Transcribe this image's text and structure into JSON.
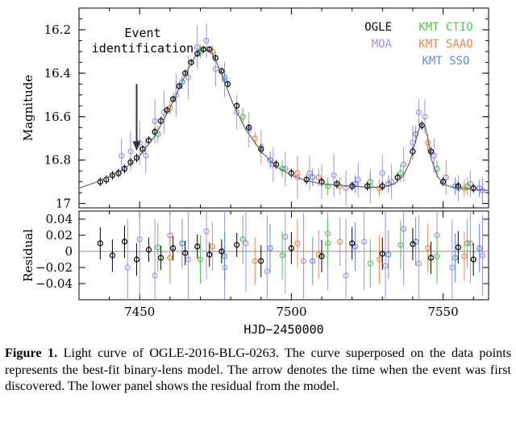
{
  "chart_data": [
    {
      "type": "scatter",
      "panel": "light curve",
      "ylabel": "Magnitude",
      "xlim": [
        7430,
        7565
      ],
      "ylim": [
        17.02,
        16.1
      ],
      "y_inverted": true,
      "yticks": [
        "16.2",
        "16.4",
        "16.6",
        "16.8",
        "17"
      ],
      "annotation": {
        "text_line1": "Event",
        "text_line2": "identification",
        "x": 7449,
        "y_from": 16.45,
        "y_to": 16.75
      },
      "legend": {
        "position": "top-right",
        "entries": [
          {
            "label": "OGLE",
            "color": "#000000"
          },
          {
            "label": "MOA",
            "color": "#a88ee8"
          },
          {
            "label": "KMT CTIO",
            "color": "#55c455"
          },
          {
            "label": "KMT SAAO",
            "color": "#ee8a4a"
          },
          {
            "label": "KMT SSO",
            "color": "#5a8de8"
          }
        ]
      },
      "model_curve": {
        "color": "#666666",
        "x": [
          7430,
          7435,
          7440,
          7445,
          7450,
          7455,
          7460,
          7463,
          7466,
          7468,
          7470,
          7472,
          7474,
          7476,
          7478,
          7481,
          7485,
          7490,
          7495,
          7500,
          7505,
          7510,
          7515,
          7520,
          7525,
          7530,
          7534,
          7537,
          7539,
          7541,
          7542,
          7543,
          7544,
          7545,
          7546,
          7548,
          7550,
          7553,
          7556,
          7560,
          7565
        ],
        "y": [
          16.93,
          16.905,
          16.875,
          16.84,
          16.78,
          16.69,
          16.56,
          16.47,
          16.38,
          16.33,
          16.29,
          16.285,
          16.31,
          16.37,
          16.44,
          16.55,
          16.66,
          16.76,
          16.83,
          16.87,
          16.895,
          16.91,
          16.915,
          16.92,
          16.925,
          16.925,
          16.91,
          16.87,
          16.81,
          16.71,
          16.66,
          16.63,
          16.64,
          16.7,
          16.79,
          16.87,
          16.91,
          16.925,
          16.93,
          16.935,
          16.94
        ]
      },
      "series": [
        {
          "name": "OGLE",
          "color": "#000000",
          "x": [
            7437,
            7439,
            7441,
            7443,
            7445,
            7447,
            7449,
            7451,
            7453,
            7455,
            7457,
            7459,
            7461,
            7463,
            7465,
            7467,
            7469,
            7471,
            7473,
            7475,
            7477,
            7479,
            7482,
            7486,
            7490,
            7495,
            7500,
            7505,
            7510,
            7515,
            7520,
            7525,
            7530,
            7535,
            7540,
            7543,
            7546,
            7550,
            7555,
            7560
          ],
          "y": [
            16.9,
            16.89,
            16.87,
            16.86,
            16.84,
            16.81,
            16.79,
            16.75,
            16.71,
            16.67,
            16.62,
            16.57,
            16.52,
            16.46,
            16.4,
            16.35,
            16.31,
            16.29,
            16.29,
            16.33,
            16.39,
            16.45,
            16.55,
            16.65,
            16.75,
            16.82,
            16.86,
            16.89,
            16.9,
            16.91,
            16.92,
            16.92,
            16.92,
            16.88,
            16.76,
            16.64,
            16.76,
            16.9,
            16.92,
            16.93
          ],
          "err": [
            0.02,
            0.02,
            0.02,
            0.02,
            0.02,
            0.02,
            0.02,
            0.02,
            0.02,
            0.02,
            0.02,
            0.015,
            0.015,
            0.015,
            0.015,
            0.015,
            0.015,
            0.015,
            0.015,
            0.015,
            0.015,
            0.015,
            0.015,
            0.015,
            0.02,
            0.02,
            0.02,
            0.02,
            0.02,
            0.02,
            0.02,
            0.02,
            0.02,
            0.02,
            0.02,
            0.02,
            0.02,
            0.02,
            0.02,
            0.02
          ]
        },
        {
          "name": "MOA",
          "color": "#a88ee8",
          "x": [
            7444,
            7447,
            7450,
            7452,
            7455,
            7458,
            7462,
            7466,
            7469,
            7472,
            7475,
            7478,
            7482,
            7486,
            7490,
            7494,
            7498,
            7502,
            7506,
            7510,
            7514,
            7518,
            7522,
            7526,
            7530,
            7533,
            7537,
            7540,
            7542,
            7544,
            7547,
            7551,
            7555,
            7559,
            7563
          ],
          "y": [
            16.78,
            16.76,
            16.72,
            16.78,
            16.62,
            16.58,
            16.5,
            16.42,
            16.28,
            16.25,
            16.38,
            16.43,
            16.58,
            16.66,
            16.74,
            16.82,
            16.84,
            16.88,
            16.86,
            16.9,
            16.87,
            16.93,
            16.89,
            16.92,
            16.86,
            16.9,
            16.82,
            16.72,
            16.58,
            16.6,
            16.78,
            16.88,
            16.93,
            16.91,
            16.94
          ],
          "err": [
            0.08,
            0.09,
            0.1,
            0.08,
            0.1,
            0.1,
            0.1,
            0.1,
            0.1,
            0.08,
            0.08,
            0.08,
            0.08,
            0.08,
            0.08,
            0.08,
            0.08,
            0.1,
            0.08,
            0.08,
            0.1,
            0.08,
            0.08,
            0.08,
            0.08,
            0.08,
            0.08,
            0.08,
            0.06,
            0.08,
            0.08,
            0.08,
            0.06,
            0.06,
            0.06
          ]
        },
        {
          "name": "KMT CTIO",
          "color": "#55c455",
          "x": [
            7456,
            7470,
            7484,
            7497,
            7512,
            7526,
            7536,
            7548,
            7558
          ],
          "y": [
            16.68,
            16.3,
            16.6,
            16.84,
            16.92,
            16.9,
            16.86,
            16.84,
            16.92
          ],
          "err": [
            0.04,
            0.03,
            0.04,
            0.04,
            0.04,
            0.04,
            0.04,
            0.04,
            0.04
          ]
        },
        {
          "name": "KMT SAAO",
          "color": "#ee8a4a",
          "x": [
            7460,
            7474,
            7488,
            7502,
            7509,
            7516,
            7529,
            7545,
            7557
          ],
          "y": [
            16.56,
            16.3,
            16.7,
            16.86,
            16.88,
            16.92,
            16.93,
            16.72,
            16.93
          ],
          "err": [
            0.03,
            0.03,
            0.03,
            0.04,
            0.04,
            0.04,
            0.04,
            0.04,
            0.04
          ]
        },
        {
          "name": "KMT SSO",
          "color": "#5a8de8",
          "x": [
            7464,
            7478,
            7493,
            7507,
            7521,
            7532,
            7541,
            7554,
            7562
          ],
          "y": [
            16.44,
            16.42,
            16.8,
            16.88,
            16.91,
            16.91,
            16.68,
            16.92,
            16.93
          ],
          "err": [
            0.03,
            0.03,
            0.04,
            0.04,
            0.04,
            0.04,
            0.04,
            0.04,
            0.04
          ]
        }
      ]
    },
    {
      "type": "scatter",
      "panel": "residual",
      "ylabel": "Residual",
      "xlabel": "HJD−2450000",
      "xlim": [
        7430,
        7565
      ],
      "ylim": [
        -0.06,
        0.05
      ],
      "xticks": [
        "7450",
        "7500",
        "7550"
      ],
      "yticks": [
        "0.04",
        "0.02",
        "0",
        "−0.02",
        "−0.04"
      ],
      "series": [
        {
          "name": "OGLE",
          "color": "#000000",
          "x": [
            7437,
            7441,
            7445,
            7449,
            7453,
            7457,
            7461,
            7465,
            7469,
            7473,
            7477,
            7482,
            7490,
            7500,
            7510,
            7520,
            7530,
            7540,
            7546,
            7555,
            7560
          ],
          "y": [
            0.01,
            -0.005,
            0.012,
            -0.01,
            0.002,
            -0.008,
            0.004,
            -0.002,
            0.006,
            -0.004,
            0.0,
            0.008,
            -0.012,
            0.004,
            -0.006,
            0.01,
            -0.003,
            0.009,
            -0.008,
            0.005,
            -0.01
          ],
          "err": [
            0.02,
            0.02,
            0.02,
            0.02,
            0.015,
            0.015,
            0.015,
            0.015,
            0.015,
            0.015,
            0.015,
            0.015,
            0.02,
            0.02,
            0.02,
            0.02,
            0.02,
            0.02,
            0.02,
            0.02,
            0.02
          ]
        },
        {
          "name": "MOA",
          "color": "#a88ee8",
          "x": [
            7446,
            7450,
            7455,
            7460,
            7466,
            7472,
            7478,
            7485,
            7492,
            7498,
            7504,
            7512,
            7518,
            7524,
            7531,
            7537,
            7542,
            7548,
            7553,
            7559,
            7563
          ],
          "y": [
            -0.02,
            0.015,
            -0.03,
            0.02,
            -0.01,
            0.025,
            -0.02,
            0.01,
            -0.025,
            0.018,
            -0.012,
            0.022,
            -0.03,
            0.012,
            -0.018,
            0.028,
            -0.015,
            0.02,
            -0.02,
            0.01,
            -0.005
          ],
          "err": [
            0.06,
            0.07,
            0.07,
            0.06,
            0.07,
            0.06,
            0.07,
            0.06,
            0.07,
            0.07,
            0.06,
            0.07,
            0.07,
            0.06,
            0.07,
            0.07,
            0.06,
            0.06,
            0.06,
            0.05,
            0.05
          ]
        },
        {
          "name": "KMT CTIO",
          "color": "#55c455",
          "x": [
            7456,
            7470,
            7484,
            7497,
            7512,
            7526,
            7536,
            7548,
            7558
          ],
          "y": [
            0.005,
            -0.01,
            0.015,
            -0.005,
            0.01,
            -0.015,
            0.008,
            -0.006,
            0.01
          ],
          "err": [
            0.03,
            0.03,
            0.03,
            0.03,
            0.03,
            0.03,
            0.03,
            0.03,
            0.03
          ]
        },
        {
          "name": "KMT SAAO",
          "color": "#ee8a4a",
          "x": [
            7460,
            7474,
            7488,
            7502,
            7509,
            7516,
            7529,
            7545,
            7557
          ],
          "y": [
            -0.008,
            0.006,
            -0.012,
            0.01,
            -0.004,
            0.012,
            -0.01,
            0.004,
            -0.006
          ],
          "err": [
            0.03,
            0.03,
            0.03,
            0.03,
            0.03,
            0.03,
            0.03,
            0.03,
            0.03
          ]
        },
        {
          "name": "KMT SSO",
          "color": "#5a8de8",
          "x": [
            7464,
            7478,
            7493,
            7507,
            7521,
            7532,
            7541,
            7554,
            7562
          ],
          "y": [
            0.01,
            -0.006,
            0.004,
            -0.012,
            0.006,
            -0.004,
            0.012,
            -0.008,
            0.004
          ],
          "err": [
            0.03,
            0.03,
            0.03,
            0.03,
            0.03,
            0.03,
            0.03,
            0.03,
            0.03
          ]
        }
      ]
    }
  ],
  "caption": {
    "label": "Figure 1.",
    "text": " Light curve of OGLE-2016-BLG-0263. The curve superposed on the data points represents the best-fit binary-lens model. The arrow denotes the time when the event was first discovered. The lower panel shows the residual from the model."
  }
}
